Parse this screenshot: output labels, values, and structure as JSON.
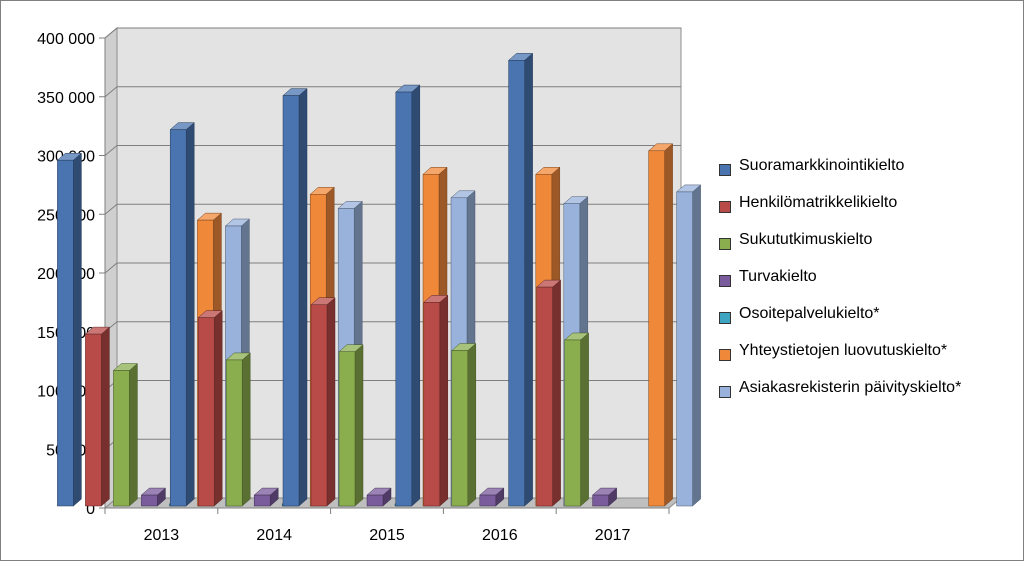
{
  "chart_data": {
    "type": "bar",
    "title": "",
    "xlabel": "",
    "ylabel": "",
    "ylim": [
      0,
      400000
    ],
    "ytick_step": 50000,
    "yticks": [
      "0",
      "50 000",
      "100 000",
      "150 000",
      "200 000",
      "250 000",
      "300 000",
      "350 000",
      "400 000"
    ],
    "categories": [
      "2013",
      "2014",
      "2015",
      "2016",
      "2017"
    ],
    "grid": true,
    "legend_position": "right",
    "style": "3d-clustered-column",
    "series": [
      {
        "name": "Suoramarkkinointikielto",
        "color": "#4a74b0",
        "values": [
          296000,
          322000,
          351000,
          354000,
          381000
        ]
      },
      {
        "name": "Henkilömatrikkelikielto",
        "color": "#b84a47",
        "values": [
          148000,
          162000,
          173000,
          175000,
          188000
        ]
      },
      {
        "name": "Sukututkimuskielto",
        "color": "#8aad4e",
        "values": [
          117000,
          126000,
          133000,
          134000,
          143000
        ]
      },
      {
        "name": "Turvakielto",
        "color": "#7a5b9c",
        "values": [
          11000,
          11000,
          11000,
          11000,
          11000
        ]
      },
      {
        "name": "Osoitepalvelukielto*",
        "color": "#3da5c2",
        "values": [
          0,
          0,
          0,
          null,
          null
        ]
      },
      {
        "name": "Yhteystietojen luovutuskielto*",
        "color": "#f0883a",
        "values": [
          245000,
          267000,
          284000,
          284000,
          304000
        ]
      },
      {
        "name": "Asiakasrekisterin päivityskielto*",
        "color": "#98b2dc",
        "values": [
          240000,
          255000,
          264000,
          259000,
          269000
        ]
      }
    ]
  }
}
